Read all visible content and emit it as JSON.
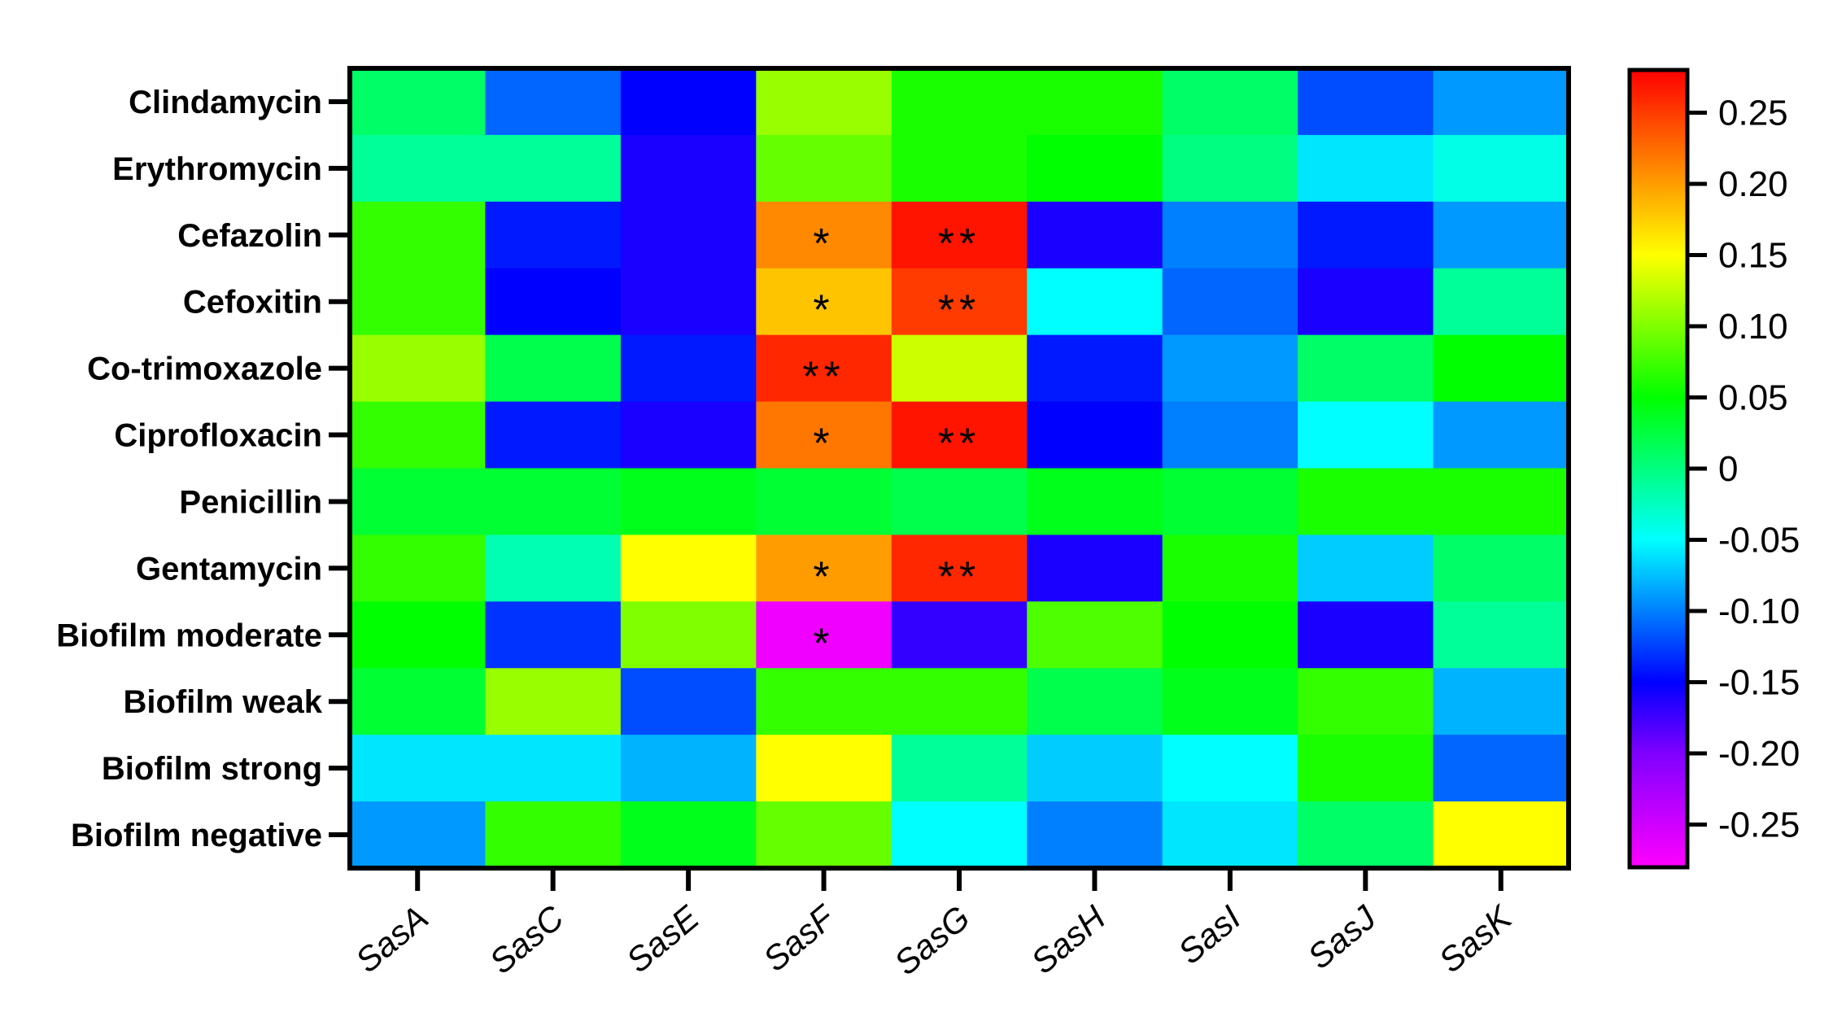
{
  "chart_data": {
    "type": "heatmap",
    "title": "",
    "xlabel": "",
    "ylabel": "",
    "columns": [
      "SasA",
      "SasC",
      "SasE",
      "SasF",
      "SasG",
      "SasH",
      "SasI",
      "SasJ",
      "SasK"
    ],
    "rows": [
      "Clindamycin",
      "Erythromycin",
      "Cefazolin",
      "Cefoxitin",
      "Co-trimoxazole",
      "Ciprofloxacin",
      "Penicillin",
      "Gentamycin",
      "Biofilm moderate",
      "Biofilm weak",
      "Biofilm strong",
      "Biofilm negative"
    ],
    "values": [
      [
        0.01,
        -0.11,
        -0.15,
        0.11,
        0.06,
        0.06,
        0.01,
        -0.12,
        -0.09
      ],
      [
        -0.01,
        -0.01,
        -0.16,
        0.09,
        0.06,
        0.05,
        0.0,
        -0.06,
        -0.04
      ],
      [
        0.07,
        -0.14,
        -0.16,
        0.21,
        0.27,
        -0.16,
        -0.1,
        -0.14,
        -0.09
      ],
      [
        0.07,
        -0.15,
        -0.16,
        0.18,
        0.25,
        -0.05,
        -0.11,
        -0.16,
        -0.01
      ],
      [
        0.11,
        0.02,
        -0.14,
        0.26,
        0.13,
        -0.14,
        -0.09,
        0.01,
        0.05
      ],
      [
        0.07,
        -0.14,
        -0.16,
        0.22,
        0.27,
        -0.15,
        -0.1,
        -0.05,
        -0.09
      ],
      [
        0.03,
        0.03,
        0.04,
        0.03,
        0.02,
        0.04,
        0.03,
        0.06,
        0.06
      ],
      [
        0.07,
        -0.02,
        0.15,
        0.2,
        0.26,
        -0.16,
        0.06,
        -0.07,
        0.01
      ],
      [
        0.05,
        -0.13,
        0.1,
        -0.27,
        -0.17,
        0.08,
        0.05,
        -0.16,
        -0.01
      ],
      [
        0.03,
        0.11,
        -0.12,
        0.07,
        0.07,
        0.02,
        0.04,
        0.07,
        -0.08
      ],
      [
        -0.06,
        -0.06,
        -0.08,
        0.15,
        -0.01,
        -0.07,
        -0.05,
        0.06,
        -0.11
      ],
      [
        -0.09,
        0.07,
        0.04,
        0.09,
        -0.05,
        -0.1,
        -0.06,
        0.01,
        0.15
      ]
    ],
    "significance": [
      [
        "",
        "",
        "",
        "",
        "",
        "",
        "",
        "",
        ""
      ],
      [
        "",
        "",
        "",
        "",
        "",
        "",
        "",
        "",
        ""
      ],
      [
        "",
        "",
        "",
        "*",
        "**",
        "",
        "",
        "",
        ""
      ],
      [
        "",
        "",
        "",
        "*",
        "**",
        "",
        "",
        "",
        ""
      ],
      [
        "",
        "",
        "",
        "**",
        "",
        "",
        "",
        "",
        ""
      ],
      [
        "",
        "",
        "",
        "*",
        "**",
        "",
        "",
        "",
        ""
      ],
      [
        "",
        "",
        "",
        "",
        "",
        "",
        "",
        "",
        ""
      ],
      [
        "",
        "",
        "",
        "*",
        "**",
        "",
        "",
        "",
        ""
      ],
      [
        "",
        "",
        "",
        "*",
        "",
        "",
        "",
        "",
        ""
      ],
      [
        "",
        "",
        "",
        "",
        "",
        "",
        "",
        "",
        ""
      ],
      [
        "",
        "",
        "",
        "",
        "",
        "",
        "",
        "",
        ""
      ],
      [
        "",
        "",
        "",
        "",
        "",
        "",
        "",
        "",
        ""
      ]
    ],
    "colorbar": {
      "range": [
        -0.28,
        0.28
      ],
      "ticks": [
        0.25,
        0.2,
        0.15,
        0.1,
        0.05,
        0,
        -0.05,
        -0.1,
        -0.15,
        -0.2,
        -0.25
      ],
      "tick_labels": [
        "0.25",
        "0.20",
        "0.15",
        "0.10",
        "0.05",
        "0",
        "-0.05",
        "-0.10",
        "-0.15",
        "-0.20",
        "-0.25"
      ],
      "color_stops": [
        {
          "value": -0.28,
          "color": "#ff00ff"
        },
        {
          "value": -0.2,
          "color": "#7f00ff"
        },
        {
          "value": -0.15,
          "color": "#0000ff"
        },
        {
          "value": -0.05,
          "color": "#00ffff"
        },
        {
          "value": 0.05,
          "color": "#00ff00"
        },
        {
          "value": 0.15,
          "color": "#ffff00"
        },
        {
          "value": 0.28,
          "color": "#ff0000"
        }
      ]
    }
  }
}
